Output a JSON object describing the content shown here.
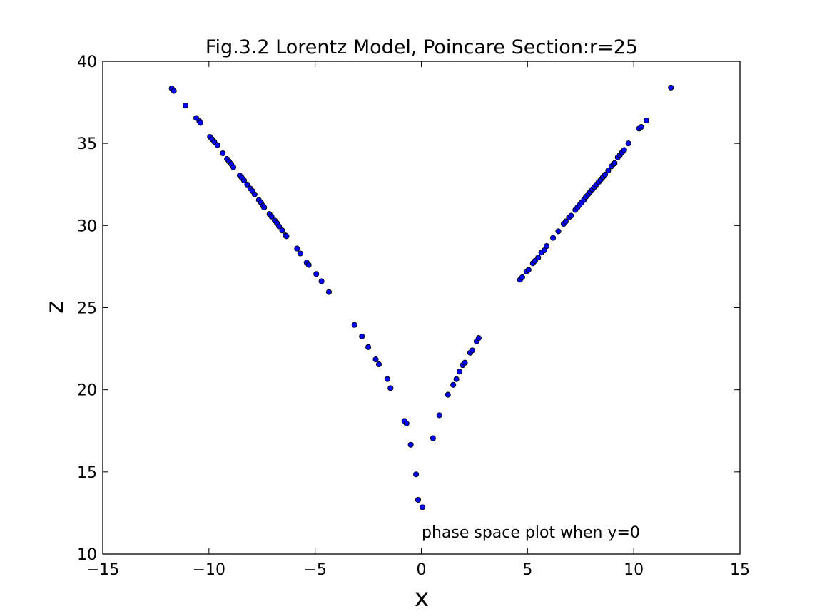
{
  "chart_data": {
    "type": "scatter",
    "title": "Fig.3.2 Lorentz Model, Poincare Section:r=25",
    "xlabel": "x",
    "ylabel": "z",
    "xlim": [
      -15,
      15
    ],
    "ylim": [
      10,
      40
    ],
    "xticks": [
      -15,
      -10,
      -5,
      0,
      5,
      10,
      15
    ],
    "yticks": [
      10,
      15,
      20,
      25,
      30,
      35,
      40
    ],
    "xtick_labels": [
      "−15",
      "−10",
      "−5",
      "0",
      "5",
      "10",
      "15"
    ],
    "ytick_labels": [
      "10",
      "15",
      "20",
      "25",
      "30",
      "35",
      "40"
    ],
    "annotation": "phase space plot when y=0",
    "grid": false,
    "marker_color": "#0000ff",
    "marker_edge": "#000000",
    "series": [
      {
        "points": [
          [
            -11.75,
            38.35
          ],
          [
            -11.65,
            38.2
          ],
          [
            -11.1,
            37.3
          ],
          [
            -10.6,
            36.55
          ],
          [
            -10.45,
            36.35
          ],
          [
            -10.4,
            36.25
          ],
          [
            -9.95,
            35.4
          ],
          [
            -9.85,
            35.25
          ],
          [
            -9.75,
            35.1
          ],
          [
            -9.6,
            34.9
          ],
          [
            -9.35,
            34.4
          ],
          [
            -9.15,
            34.05
          ],
          [
            -9.05,
            33.9
          ],
          [
            -8.95,
            33.75
          ],
          [
            -8.85,
            33.55
          ],
          [
            -8.55,
            33.05
          ],
          [
            -8.45,
            32.9
          ],
          [
            -8.35,
            32.75
          ],
          [
            -8.2,
            32.5
          ],
          [
            -8.05,
            32.25
          ],
          [
            -7.95,
            32.1
          ],
          [
            -7.85,
            31.9
          ],
          [
            -7.65,
            31.55
          ],
          [
            -7.55,
            31.4
          ],
          [
            -7.45,
            31.2
          ],
          [
            -7.4,
            31.1
          ],
          [
            -7.15,
            30.7
          ],
          [
            -7.05,
            30.55
          ],
          [
            -6.9,
            30.3
          ],
          [
            -6.8,
            30.15
          ],
          [
            -6.7,
            29.95
          ],
          [
            -6.55,
            29.7
          ],
          [
            -6.4,
            29.4
          ],
          [
            -6.35,
            29.35
          ],
          [
            -5.85,
            28.6
          ],
          [
            -5.7,
            28.3
          ],
          [
            -5.4,
            27.75
          ],
          [
            -5.3,
            27.6
          ],
          [
            -4.95,
            27.05
          ],
          [
            -4.7,
            26.6
          ],
          [
            -4.35,
            25.95
          ],
          [
            -3.15,
            23.95
          ],
          [
            -2.8,
            23.25
          ],
          [
            -2.5,
            22.6
          ],
          [
            -2.15,
            21.85
          ],
          [
            -2.0,
            21.55
          ],
          [
            -1.6,
            20.65
          ],
          [
            -1.45,
            20.1
          ],
          [
            -0.8,
            18.1
          ],
          [
            -0.7,
            17.95
          ],
          [
            -0.5,
            16.65
          ],
          [
            -0.25,
            14.85
          ],
          [
            -0.15,
            13.3
          ],
          [
            0.05,
            12.85
          ],
          [
            0.55,
            17.05
          ],
          [
            0.85,
            18.45
          ],
          [
            1.25,
            19.7
          ],
          [
            1.5,
            20.3
          ],
          [
            1.65,
            20.65
          ],
          [
            1.8,
            21.1
          ],
          [
            1.95,
            21.5
          ],
          [
            2.05,
            21.65
          ],
          [
            2.3,
            22.25
          ],
          [
            2.4,
            22.4
          ],
          [
            2.6,
            22.95
          ],
          [
            2.7,
            23.15
          ],
          [
            4.65,
            26.7
          ],
          [
            4.75,
            26.85
          ],
          [
            4.95,
            27.2
          ],
          [
            5.05,
            27.3
          ],
          [
            5.25,
            27.7
          ],
          [
            5.35,
            27.85
          ],
          [
            5.5,
            28.05
          ],
          [
            5.65,
            28.35
          ],
          [
            5.8,
            28.5
          ],
          [
            5.9,
            28.75
          ],
          [
            6.2,
            29.25
          ],
          [
            6.45,
            29.65
          ],
          [
            6.7,
            30.1
          ],
          [
            6.8,
            30.25
          ],
          [
            6.95,
            30.5
          ],
          [
            7.05,
            30.6
          ],
          [
            7.25,
            30.95
          ],
          [
            7.35,
            31.1
          ],
          [
            7.45,
            31.25
          ],
          [
            7.55,
            31.4
          ],
          [
            7.65,
            31.55
          ],
          [
            7.75,
            31.75
          ],
          [
            7.85,
            31.9
          ],
          [
            7.95,
            32.05
          ],
          [
            8.05,
            32.2
          ],
          [
            8.15,
            32.35
          ],
          [
            8.25,
            32.5
          ],
          [
            8.35,
            32.65
          ],
          [
            8.45,
            32.8
          ],
          [
            8.55,
            32.95
          ],
          [
            8.65,
            33.1
          ],
          [
            8.8,
            33.35
          ],
          [
            8.95,
            33.6
          ],
          [
            9.05,
            33.75
          ],
          [
            9.1,
            33.8
          ],
          [
            9.25,
            34.15
          ],
          [
            9.35,
            34.3
          ],
          [
            9.45,
            34.45
          ],
          [
            9.55,
            34.6
          ],
          [
            9.75,
            35.0
          ],
          [
            10.25,
            35.9
          ],
          [
            10.35,
            36.0
          ],
          [
            10.6,
            36.4
          ],
          [
            11.75,
            38.4
          ]
        ]
      }
    ]
  }
}
